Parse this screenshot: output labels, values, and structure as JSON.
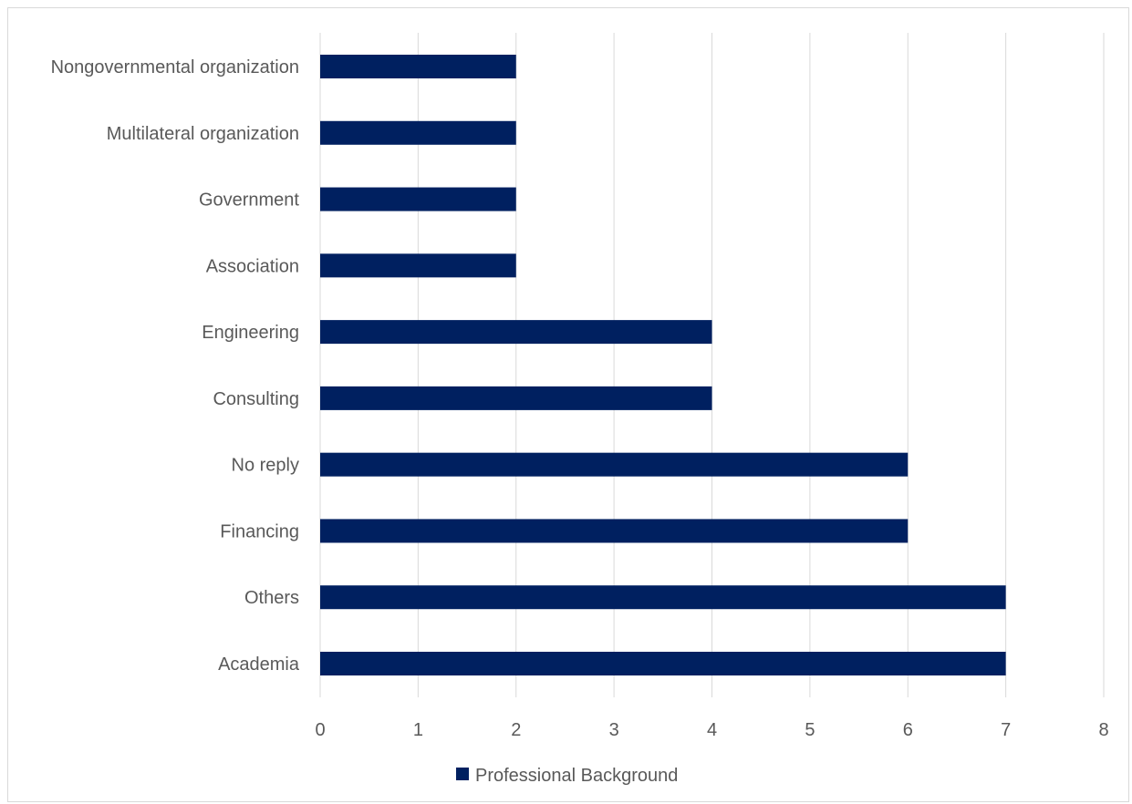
{
  "chart_data": {
    "type": "bar",
    "orientation": "horizontal",
    "categories": [
      "Nongovernmental organization",
      "Multilateral organization",
      "Government",
      "Association",
      "Engineering",
      "Consulting",
      "No reply",
      "Financing",
      "Others",
      "Academia"
    ],
    "series": [
      {
        "name": "Professional Background",
        "values": [
          2,
          2,
          2,
          2,
          4,
          4,
          6,
          6,
          7,
          7
        ],
        "color": "#002060"
      }
    ],
    "xticks": [
      "0",
      "1",
      "2",
      "3",
      "4",
      "5",
      "6",
      "7",
      "8"
    ],
    "xlim": [
      0,
      8
    ],
    "grid": "vertical",
    "legend_position": "bottom"
  }
}
